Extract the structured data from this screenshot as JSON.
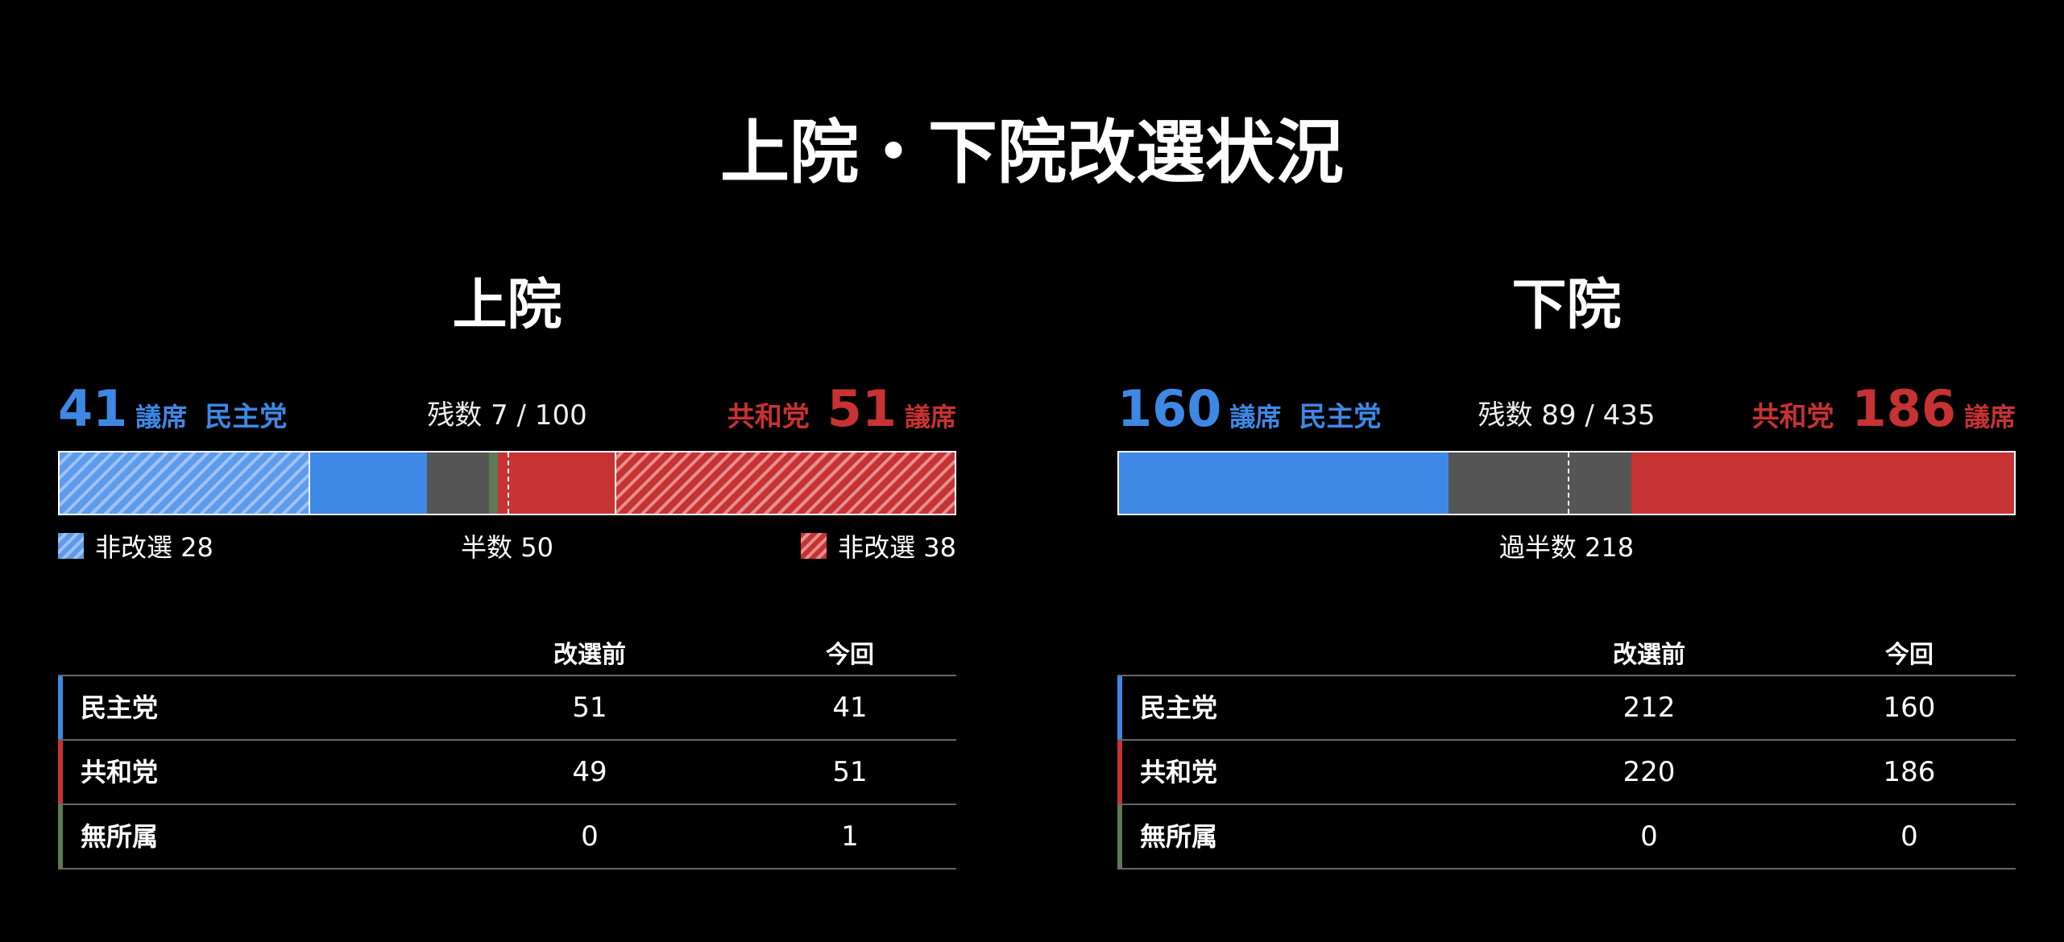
{
  "title": "上院・下院改選状況",
  "chart_data": [
    {
      "type": "bar",
      "title": "上院",
      "total": 100,
      "dem": {
        "seats": 41,
        "party": "民主党",
        "unit": "議席",
        "non_up": 28,
        "non_up_label": "非改選 28"
      },
      "rep": {
        "seats": 51,
        "party": "共和党",
        "unit": "議席",
        "non_up": 38,
        "non_up_label": "非改選 38"
      },
      "ind": {
        "seats": 1
      },
      "remaining": 7,
      "remaining_label": "残数 7 / 100",
      "majority": 50,
      "majority_label": "半数  50",
      "table": {
        "headers": [
          "改選前",
          "今回"
        ],
        "rows": [
          {
            "party": "民主党",
            "color": "#3e88e5",
            "before": "51",
            "now": "41"
          },
          {
            "party": "共和党",
            "color": "#c73232",
            "before": "49",
            "now": "51"
          },
          {
            "party": "無所属",
            "color": "#5d7a55",
            "before": "0",
            "now": "1"
          }
        ]
      }
    },
    {
      "type": "bar",
      "title": "下院",
      "total": 435,
      "dem": {
        "seats": 160,
        "party": "民主党",
        "unit": "議席",
        "non_up": 0
      },
      "rep": {
        "seats": 186,
        "party": "共和党",
        "unit": "議席",
        "non_up": 0
      },
      "ind": {
        "seats": 0
      },
      "remaining": 89,
      "remaining_label": "残数 89 / 435",
      "majority": 218,
      "majority_label": "過半数  218",
      "table": {
        "headers": [
          "改選前",
          "今回"
        ],
        "rows": [
          {
            "party": "民主党",
            "color": "#3e88e5",
            "before": "212",
            "now": "160"
          },
          {
            "party": "共和党",
            "color": "#c73232",
            "before": "220",
            "now": "186"
          },
          {
            "party": "無所属",
            "color": "#5d7a55",
            "before": "0",
            "now": "0"
          }
        ]
      }
    }
  ]
}
